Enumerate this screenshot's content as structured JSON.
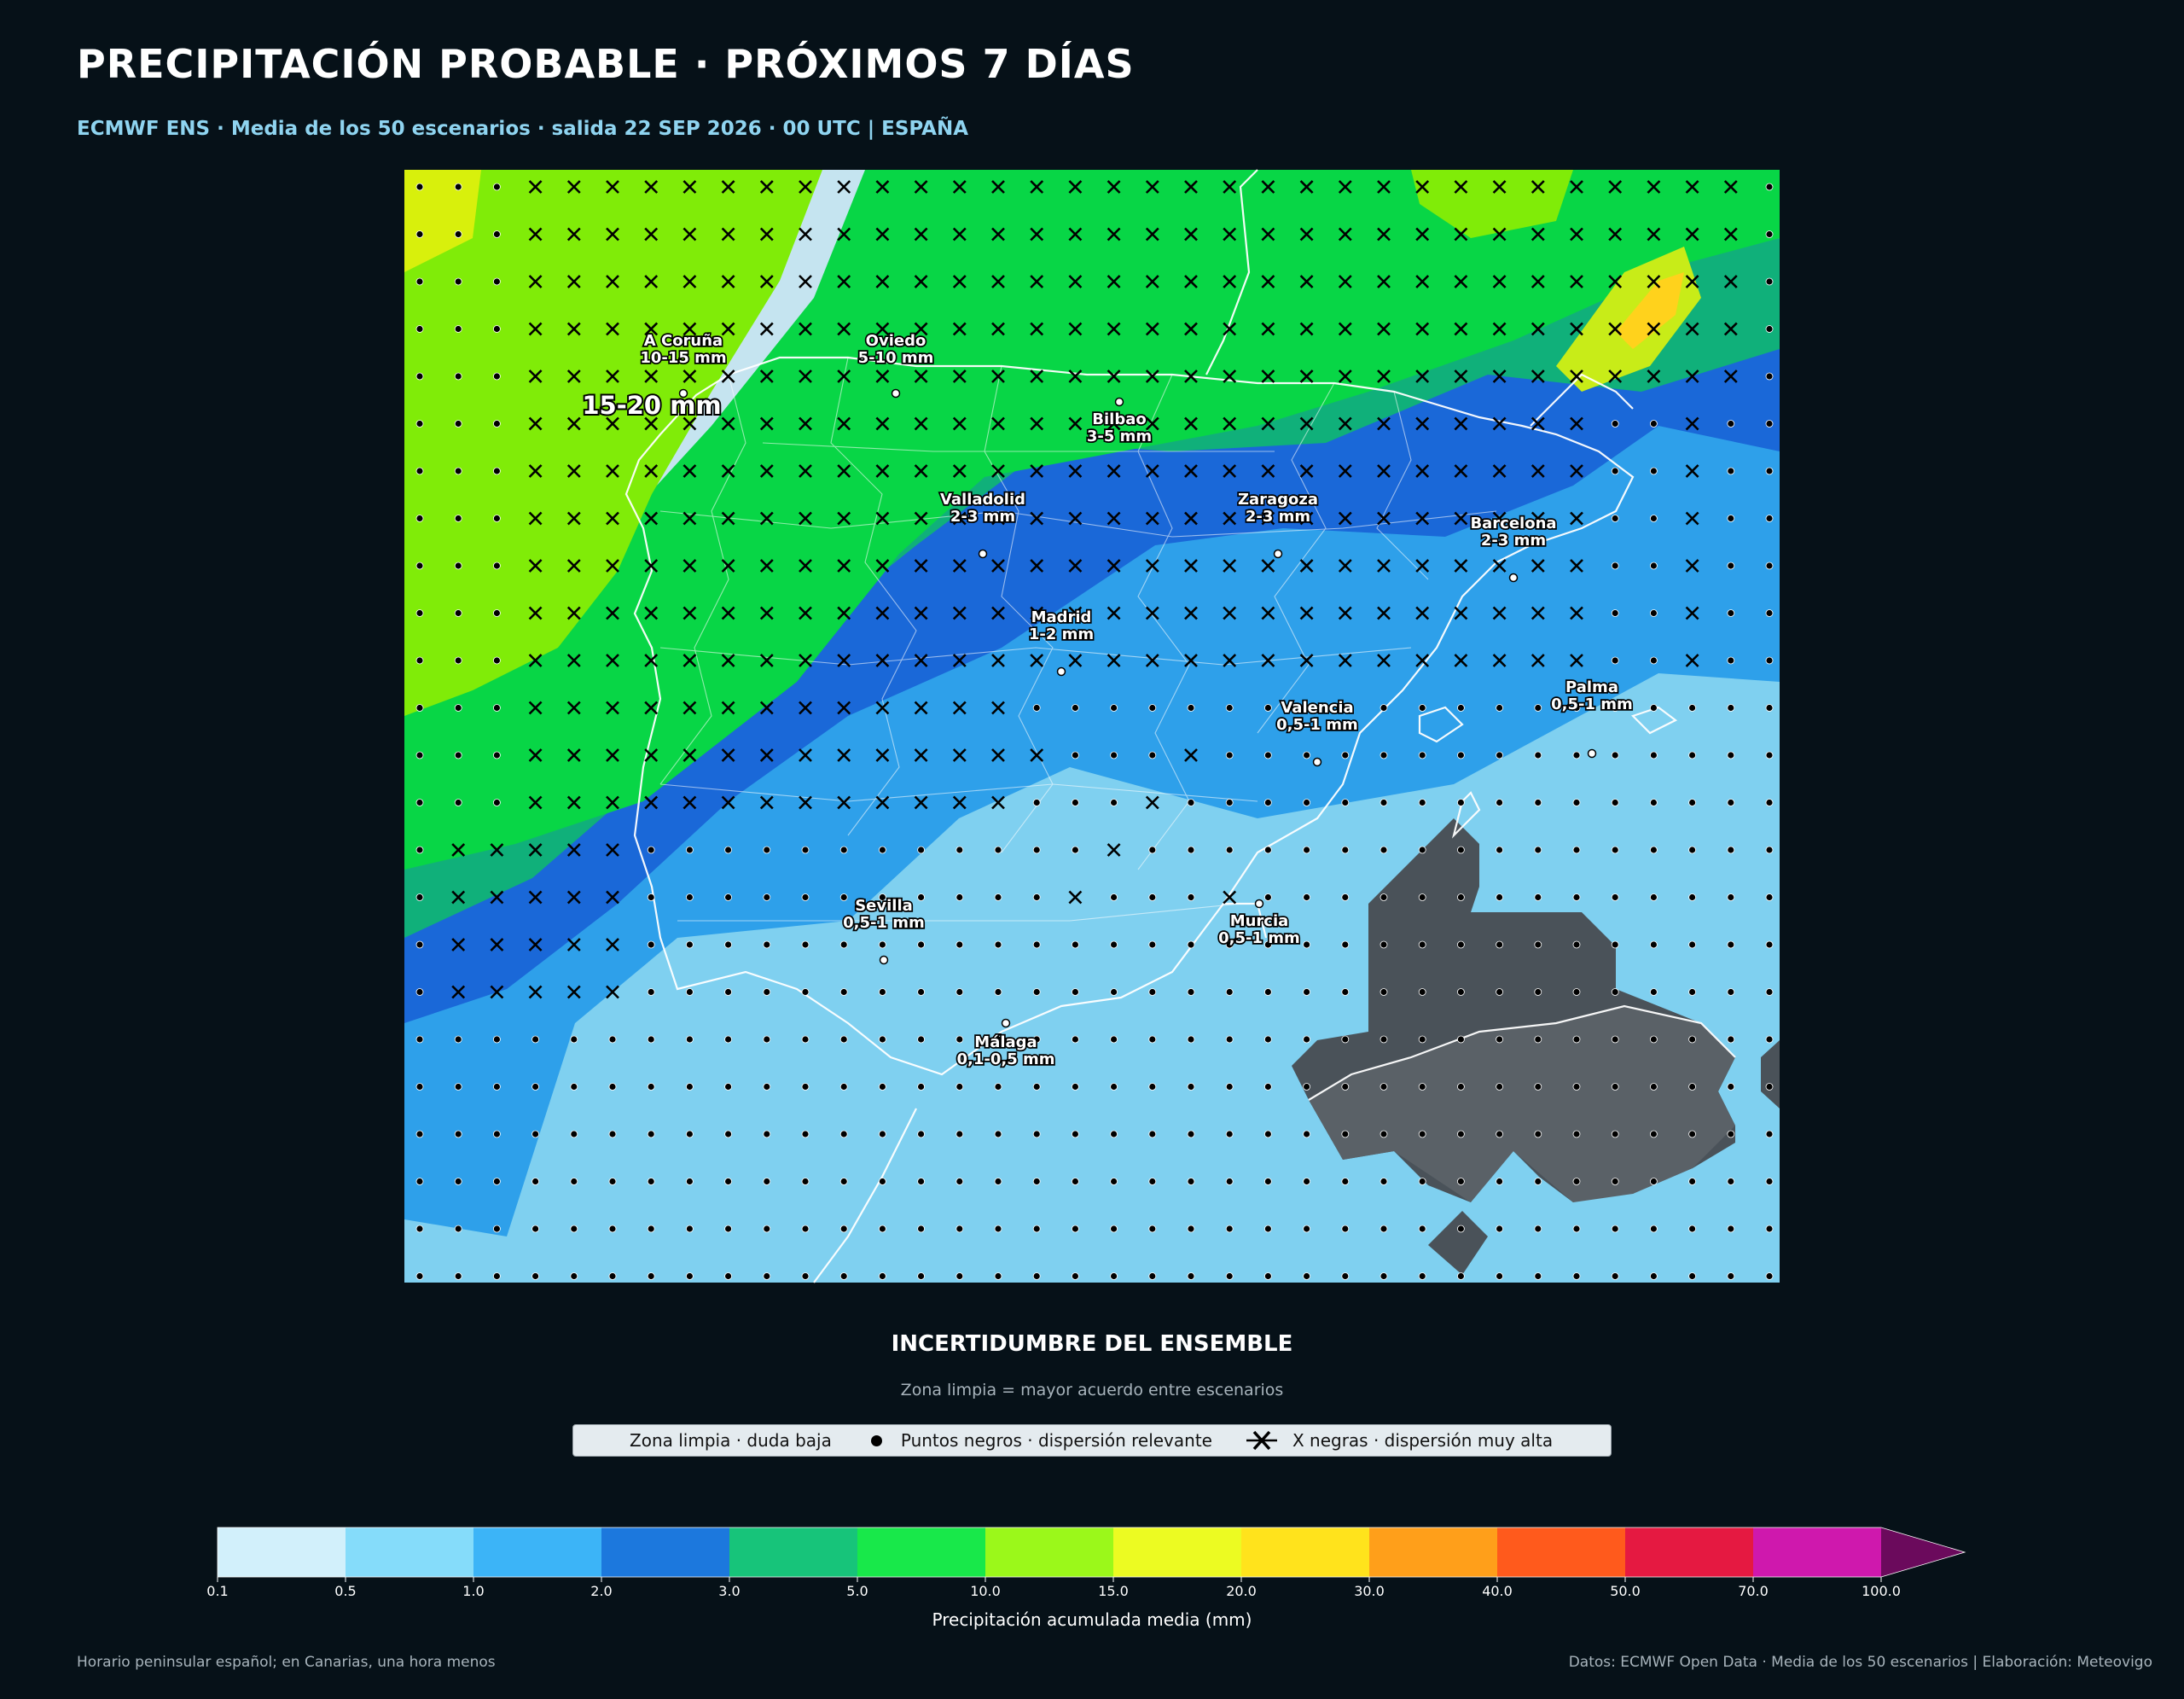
{
  "header": {
    "title": "PRECIPITACIÓN PROBABLE · PRÓXIMOS 7 DÍAS",
    "subtitle": "ECMWF ENS · Media de los 50 escenarios · salida 22 SEP 2026 · 00 UTC | ESPAÑA"
  },
  "map": {
    "region_label": "15-20 mm",
    "cities": [
      {
        "name": "A Coruña",
        "value": "10-15 mm"
      },
      {
        "name": "Oviedo",
        "value": "5-10 mm"
      },
      {
        "name": "Bilbao",
        "value": "3-5 mm"
      },
      {
        "name": "Valladolid",
        "value": "2-3 mm"
      },
      {
        "name": "Zaragoza",
        "value": "2-3 mm"
      },
      {
        "name": "Barcelona",
        "value": "2-3 mm"
      },
      {
        "name": "Madrid",
        "value": "1-2 mm"
      },
      {
        "name": "Valencia",
        "value": "0,5-1 mm"
      },
      {
        "name": "Palma",
        "value": "0,5-1 mm"
      },
      {
        "name": "Sevilla",
        "value": "0,5-1 mm"
      },
      {
        "name": "Murcia",
        "value": "0,5-1 mm"
      },
      {
        "name": "Málaga",
        "value": "0,1-0,5 mm"
      }
    ]
  },
  "uncertainty": {
    "title": "INCERTIDUMBRE DEL ENSEMBLE",
    "subtitle": "Zona limpia = mayor acuerdo entre escenarios",
    "legend": {
      "clear": "Zona limpia · duda baja",
      "dots": "Puntos negros · dispersión relevante",
      "crosses": "X negras · dispersión muy alta"
    }
  },
  "colorbar": {
    "label": "Precipitación acumulada media (mm)",
    "ticks": [
      "0.1",
      "0.5",
      "1.0",
      "2.0",
      "3.0",
      "5.0",
      "10.0",
      "15.0",
      "20.0",
      "30.0",
      "40.0",
      "50.0",
      "70.0",
      "100.0"
    ],
    "colors": [
      "#d2f0fb",
      "#85dcfa",
      "#3cb4f7",
      "#1c78dd",
      "#17c47a",
      "#18e84a",
      "#9bf81a",
      "#ecfb22",
      "#ffe31c",
      "#ff9f1a",
      "#ff5a1c",
      "#e51941",
      "#cf18ad"
    ],
    "extend_color": "#6b0a5c"
  },
  "footer": {
    "left": "Horario peninsular español; en Canarias, una hora menos",
    "right": "Datos: ECMWF Open Data · Media de los 50 escenarios | Elaboración: Meteovigo"
  }
}
